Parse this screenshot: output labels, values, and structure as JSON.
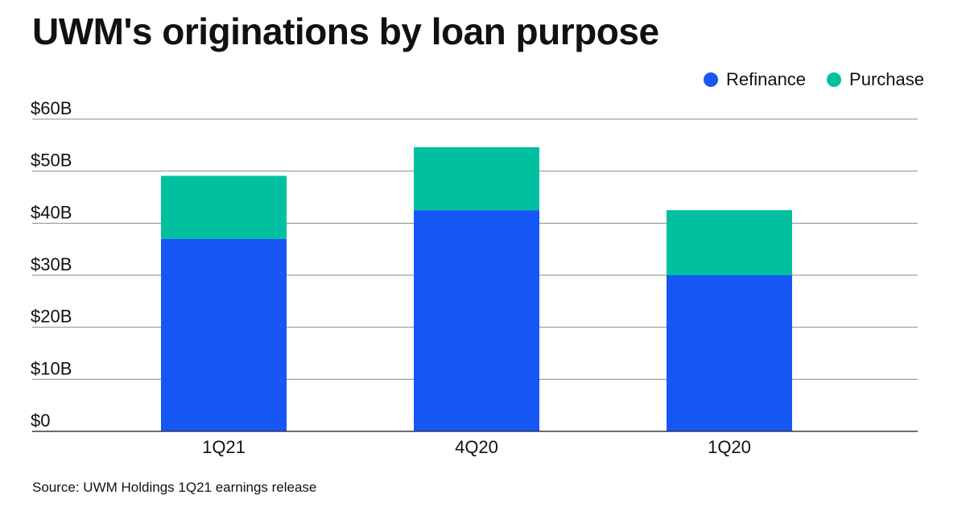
{
  "chart_data": {
    "type": "bar",
    "stacked": true,
    "title": "UWM's originations by loan purpose",
    "categories": [
      "1Q21",
      "4Q20",
      "1Q20"
    ],
    "series": [
      {
        "name": "Refinance",
        "color": "#1657f5",
        "values": [
          37,
          42.5,
          30
        ]
      },
      {
        "name": "Purchase",
        "color": "#00c0a0",
        "values": [
          12.1,
          12.1,
          12.5
        ]
      }
    ],
    "yticks": [
      "$0",
      "$10B",
      "$20B",
      "$30B",
      "$40B",
      "$50B",
      "$60B"
    ],
    "ylim": [
      0,
      60
    ],
    "grid": true,
    "legend_position": "top-right"
  },
  "source": "Source: UWM Holdings 1Q21 earnings release"
}
